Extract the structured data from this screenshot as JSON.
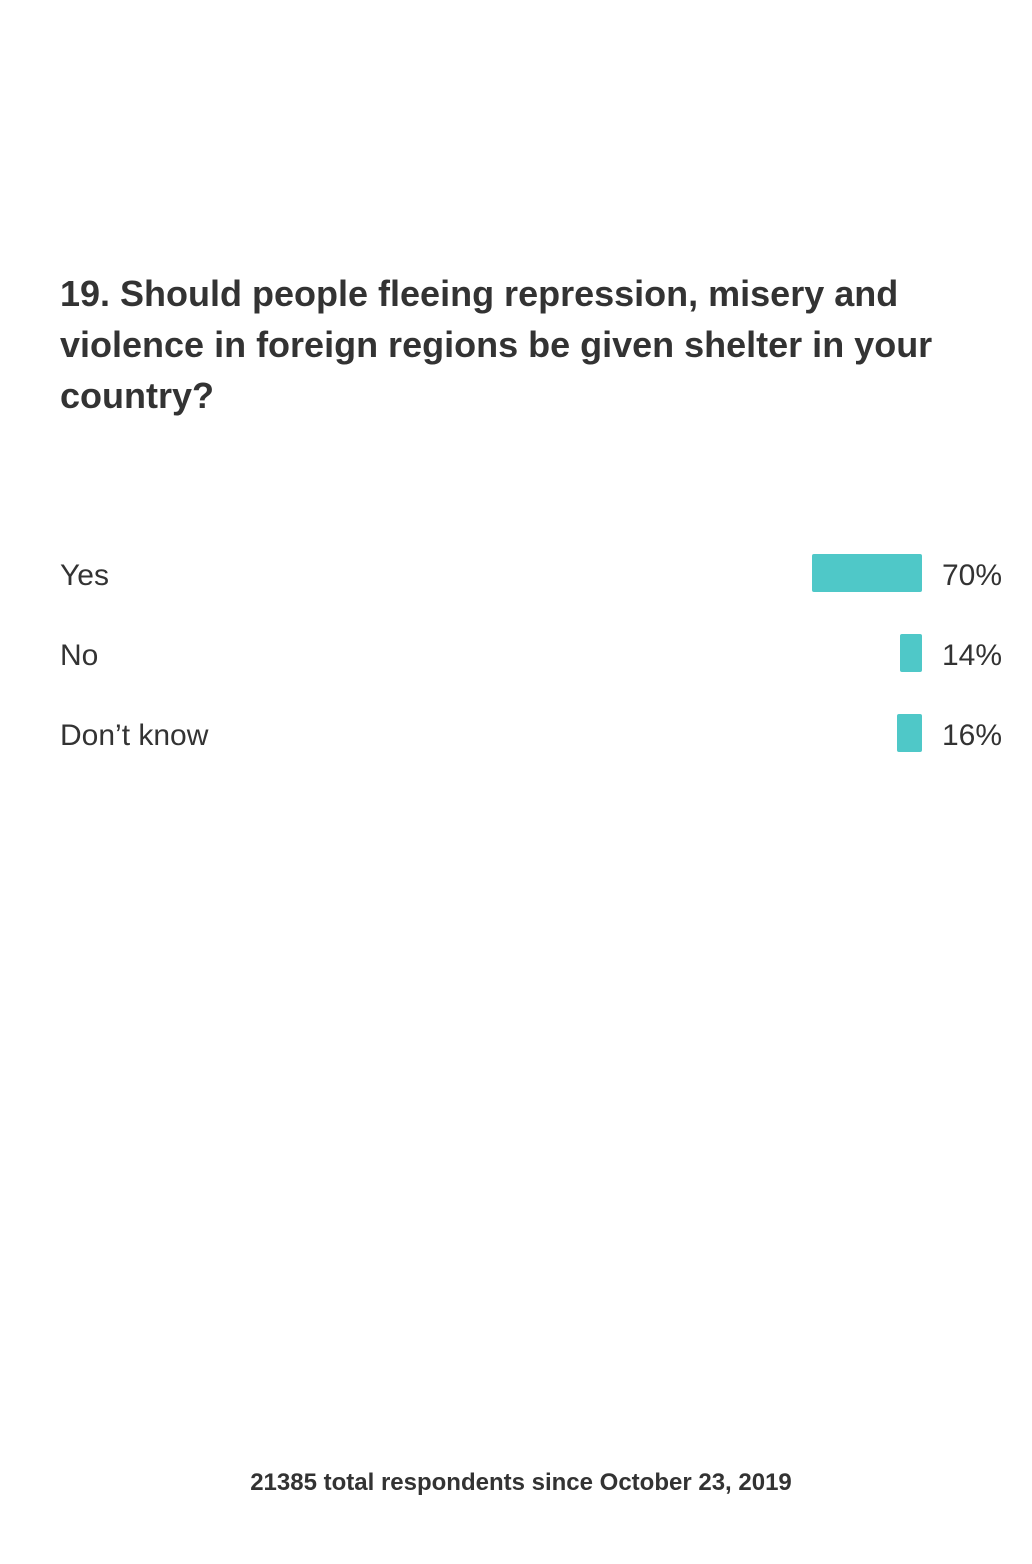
{
  "poll": {
    "question": "19. Should people fleeing repression, misery and violence in foreign regions be given shelter in your country?",
    "bar_color": "#4fc8c8",
    "answers": [
      {
        "label": "Yes",
        "percent": 70,
        "percent_label": "70%"
      },
      {
        "label": "No",
        "percent": 14,
        "percent_label": "14%"
      },
      {
        "label": "Don’t know",
        "percent": 16,
        "percent_label": "16%"
      }
    ],
    "footer": "21385 total respondents since October 23, 2019"
  }
}
